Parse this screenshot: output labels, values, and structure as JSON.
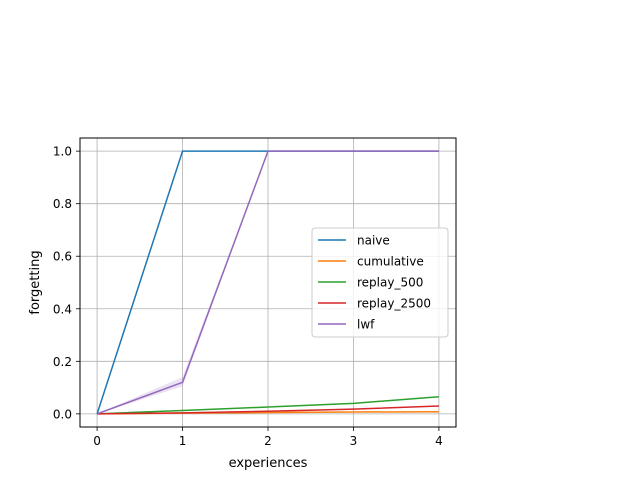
{
  "chart_data": {
    "type": "line",
    "title": "",
    "xlabel": "experiences",
    "ylabel": "forgetting",
    "xlim": [
      -0.2,
      4.2
    ],
    "ylim": [
      -0.05,
      1.05
    ],
    "xticks": [
      0,
      1,
      2,
      3,
      4
    ],
    "yticks": [
      0.0,
      0.2,
      0.4,
      0.6,
      0.8,
      1.0
    ],
    "xtick_labels": [
      "0",
      "1",
      "2",
      "3",
      "4"
    ],
    "ytick_labels": [
      "0.0",
      "0.2",
      "0.4",
      "0.6",
      "0.8",
      "1.0"
    ],
    "grid": true,
    "legend_position": "center-right",
    "x": [
      0,
      1,
      2,
      3,
      4
    ],
    "series": [
      {
        "name": "naive",
        "color": "#1f77b4",
        "values": [
          0.0,
          1.0,
          1.0,
          1.0,
          1.0
        ]
      },
      {
        "name": "cumulative",
        "color": "#ff7f0e",
        "values": [
          0.0,
          0.003,
          0.005,
          0.007,
          0.008
        ]
      },
      {
        "name": "replay_500",
        "color": "#2ca02c",
        "values": [
          0.0,
          0.013,
          0.026,
          0.04,
          0.065
        ]
      },
      {
        "name": "replay_2500",
        "color": "#d62728",
        "values": [
          0.0,
          0.004,
          0.01,
          0.018,
          0.03
        ]
      },
      {
        "name": "lwf",
        "color": "#9467bd",
        "values": [
          0.0,
          0.12,
          1.0,
          1.0,
          1.0
        ],
        "band": {
          "lower": [
            0.0,
            0.105,
            1.0,
            1.0,
            1.0
          ],
          "upper": [
            0.0,
            0.14,
            1.0,
            1.0,
            1.0
          ]
        }
      }
    ]
  }
}
